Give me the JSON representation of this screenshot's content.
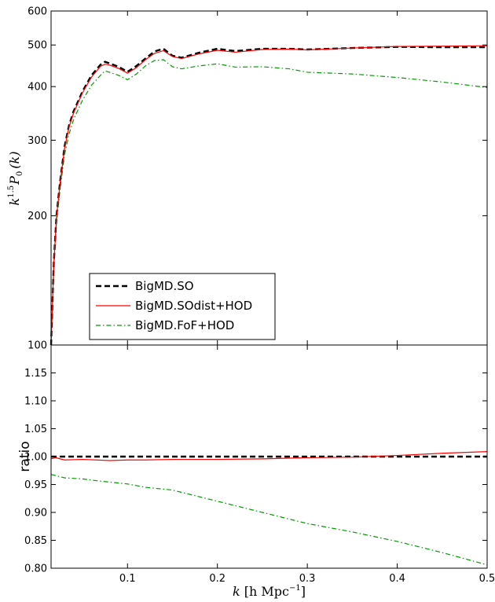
{
  "chart_data": [
    {
      "type": "line",
      "panel": "top",
      "ylabel_parts": [
        "k",
        "1.5",
        "P",
        "0",
        "(k)"
      ],
      "yscale": "log",
      "ylim": [
        100,
        600
      ],
      "xlim": [
        0.015,
        0.5
      ],
      "yticks": [
        100,
        200,
        300,
        400,
        500,
        600
      ],
      "ytick_labels": [
        "100",
        "200",
        "300",
        "400",
        "500",
        "600"
      ],
      "grid": false,
      "legend_placement": "lower-left",
      "series": [
        {
          "name": "BigMD.SO",
          "color": "#000000",
          "style": "dashed",
          "x": [
            0.015,
            0.018,
            0.021,
            0.025,
            0.03,
            0.035,
            0.04,
            0.05,
            0.06,
            0.07,
            0.075,
            0.08,
            0.09,
            0.1,
            0.11,
            0.12,
            0.13,
            0.14,
            0.15,
            0.16,
            0.18,
            0.2,
            0.22,
            0.25,
            0.28,
            0.3,
            0.35,
            0.4,
            0.45,
            0.5
          ],
          "y": [
            100,
            155,
            200,
            240,
            290,
            325,
            350,
            390,
            425,
            450,
            457,
            453,
            445,
            433,
            447,
            465,
            483,
            490,
            472,
            467,
            480,
            490,
            484,
            490,
            490,
            488,
            492,
            495,
            494,
            494
          ]
        },
        {
          "name": "BigMD.SOdist+HOD",
          "color": "#ff0000",
          "style": "solid",
          "x": [
            0.015,
            0.018,
            0.021,
            0.025,
            0.03,
            0.035,
            0.04,
            0.05,
            0.06,
            0.07,
            0.075,
            0.08,
            0.09,
            0.1,
            0.11,
            0.12,
            0.13,
            0.14,
            0.15,
            0.16,
            0.18,
            0.2,
            0.22,
            0.25,
            0.28,
            0.3,
            0.35,
            0.4,
            0.45,
            0.5
          ],
          "y": [
            100,
            154,
            198,
            238,
            287,
            322,
            347,
            387,
            421,
            446,
            451,
            449,
            441,
            430,
            443,
            462,
            478,
            485,
            470,
            465,
            477,
            486,
            481,
            488,
            489,
            487,
            492,
            496,
            497,
            498
          ]
        },
        {
          "name": "BigMD.FoF+HOD",
          "color": "#009900",
          "style": "dashdot",
          "x": [
            0.015,
            0.018,
            0.021,
            0.025,
            0.03,
            0.035,
            0.04,
            0.05,
            0.06,
            0.07,
            0.075,
            0.08,
            0.09,
            0.1,
            0.11,
            0.12,
            0.13,
            0.14,
            0.15,
            0.16,
            0.18,
            0.2,
            0.22,
            0.25,
            0.28,
            0.3,
            0.35,
            0.4,
            0.45,
            0.5
          ],
          "y": [
            100,
            150,
            193,
            230,
            278,
            310,
            335,
            372,
            403,
            425,
            435,
            432,
            425,
            415,
            428,
            447,
            460,
            462,
            445,
            440,
            447,
            452,
            444,
            445,
            440,
            432,
            428,
            420,
            410,
            398
          ]
        }
      ]
    },
    {
      "type": "line",
      "panel": "bottom",
      "xlabel_parts": [
        "k",
        "[h Mpc",
        "−1",
        "]"
      ],
      "ylabel": "ratio",
      "xlim": [
        0.015,
        0.5
      ],
      "ylim": [
        0.8,
        1.2
      ],
      "xticks": [
        0.1,
        0.2,
        0.3,
        0.4,
        0.5
      ],
      "xtick_labels": [
        "0.1",
        "0.2",
        "0.3",
        "0.4",
        "0.5"
      ],
      "yticks": [
        0.8,
        0.85,
        0.9,
        0.95,
        1.0,
        1.05,
        1.1,
        1.15
      ],
      "ytick_labels": [
        "0.80",
        "0.85",
        "0.90",
        "0.95",
        "1.00",
        "1.05",
        "1.10",
        "1.15"
      ],
      "grid": false,
      "series": [
        {
          "name": "BigMD.SO",
          "color": "#000000",
          "style": "dashed",
          "x": [
            0.015,
            0.5
          ],
          "y": [
            1.0,
            1.0
          ]
        },
        {
          "name": "BigMD.SOdist+HOD",
          "color": "#ff0000",
          "style": "solid",
          "x": [
            0.015,
            0.02,
            0.03,
            0.05,
            0.08,
            0.1,
            0.12,
            0.15,
            0.2,
            0.25,
            0.3,
            0.35,
            0.4,
            0.45,
            0.5
          ],
          "y": [
            0.996,
            0.998,
            0.994,
            0.995,
            0.993,
            0.994,
            0.994,
            0.995,
            0.995,
            0.996,
            0.998,
            0.999,
            1.002,
            1.006,
            1.009
          ]
        },
        {
          "name": "BigMD.FoF+HOD",
          "color": "#009900",
          "style": "dashdot",
          "x": [
            0.015,
            0.02,
            0.03,
            0.05,
            0.07,
            0.1,
            0.12,
            0.15,
            0.2,
            0.25,
            0.3,
            0.35,
            0.4,
            0.45,
            0.5
          ],
          "y": [
            0.968,
            0.966,
            0.962,
            0.96,
            0.956,
            0.951,
            0.945,
            0.94,
            0.92,
            0.9,
            0.88,
            0.865,
            0.848,
            0.828,
            0.806
          ]
        }
      ]
    }
  ],
  "legend": {
    "entries": [
      "BigMD.SO",
      "BigMD.SOdist+HOD",
      "BigMD.FoF+HOD"
    ]
  }
}
